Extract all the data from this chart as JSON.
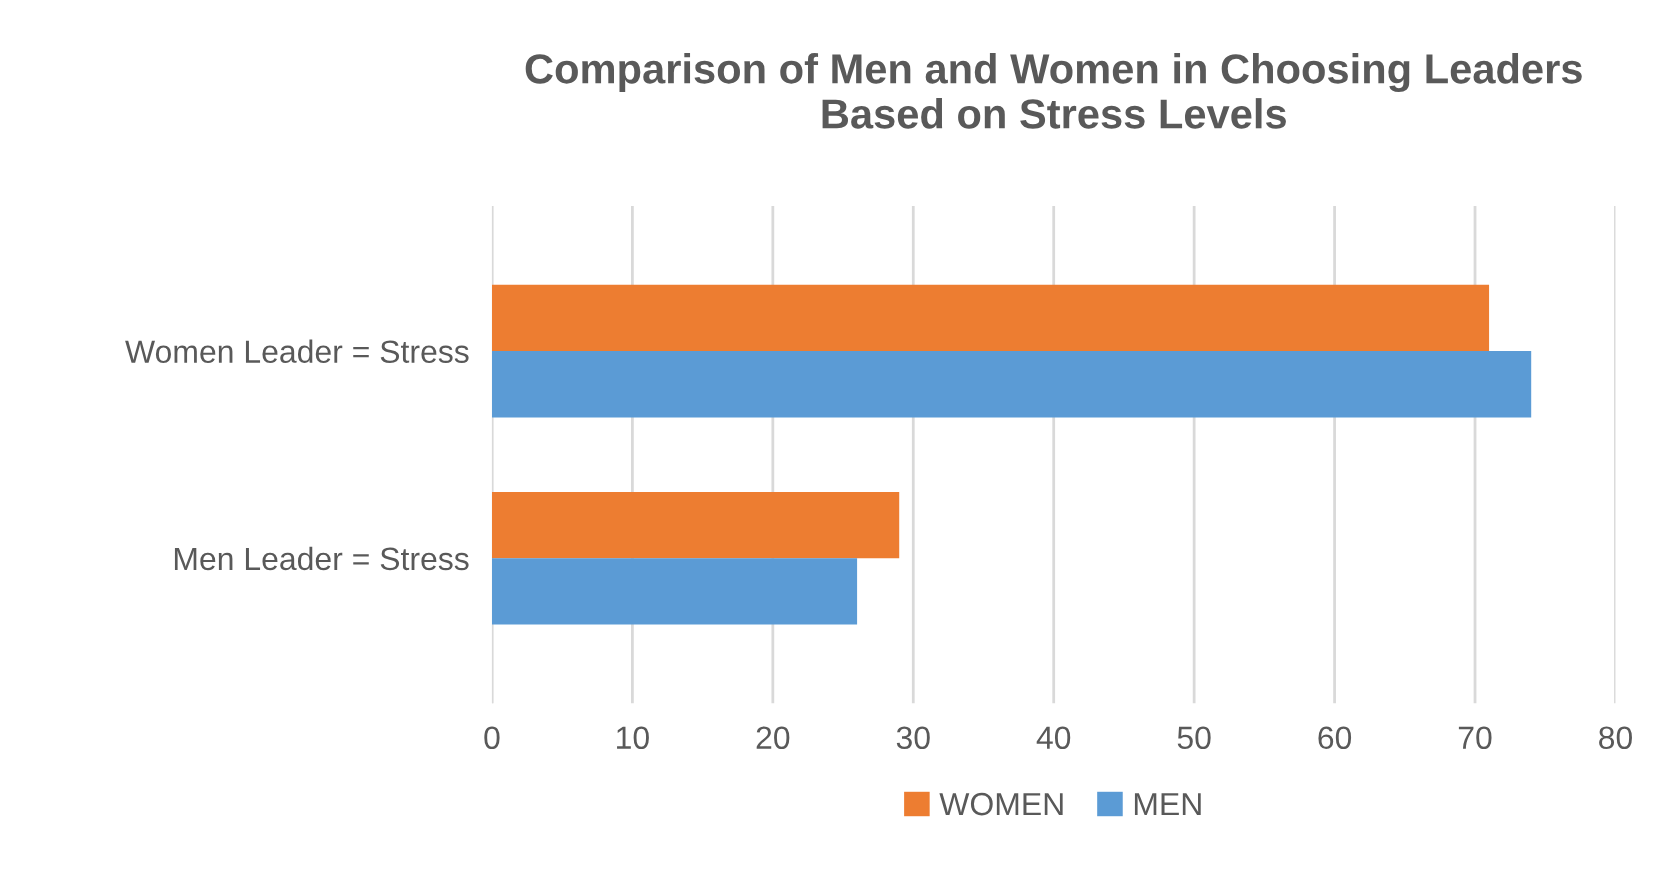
{
  "chart_data": {
    "type": "bar",
    "orientation": "horizontal",
    "title": "Comparison of Men and Women in Choosing Leaders\nBased on Stress Levels",
    "categories": [
      "Women Leader = Stress",
      "Men Leader = Stress"
    ],
    "series": [
      {
        "name": "WOMEN",
        "color": "#ed7d31",
        "values": [
          71,
          29
        ]
      },
      {
        "name": "MEN",
        "color": "#5b9bd5",
        "values": [
          74,
          26
        ]
      }
    ],
    "xlim": [
      0,
      80
    ],
    "xticks": [
      0,
      10,
      20,
      30,
      40,
      50,
      60,
      70,
      80
    ],
    "grid": "x",
    "legend": "bottom"
  }
}
